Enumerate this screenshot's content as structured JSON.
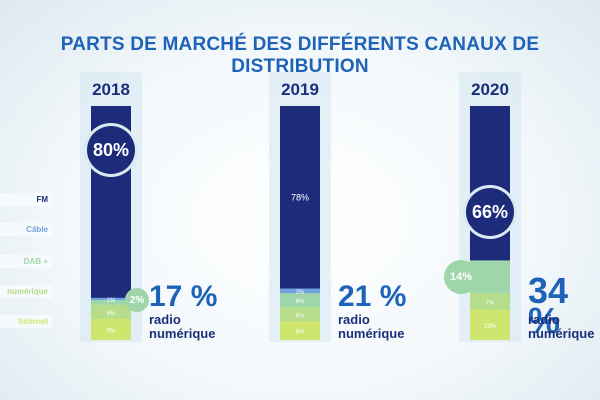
{
  "title": "PARTS DE MARCHÉ DES DIFFÉRENTS CANAUX DE DISTRIBUTION",
  "chart_data": {
    "type": "bar",
    "stacked": true,
    "title": "PARTS DE MARCHÉ DES DIFFÉRENTS CANAUX DE DISTRIBUTION",
    "categories": [
      "2018",
      "2019",
      "2020"
    ],
    "unit": "%",
    "series": [
      {
        "name": "FM",
        "color": "#1c2c7a",
        "labels": [
          "80%",
          "78%",
          "66%"
        ],
        "values": [
          80,
          78,
          66
        ]
      },
      {
        "name": "Câble",
        "color": "#6fa3dd",
        "labels": [
          "1%",
          "2%",
          ""
        ],
        "values": [
          1,
          2,
          0
        ]
      },
      {
        "name": "DAB +",
        "color": "#9fd6a9",
        "labels": [
          "2%",
          "6%",
          "14%"
        ],
        "values": [
          2,
          6,
          14
        ]
      },
      {
        "name": "numérique",
        "color": "#b6dd8a",
        "labels": [
          "6%",
          "6%",
          "7%"
        ],
        "values": [
          6,
          6,
          7
        ]
      },
      {
        "name": "Internet",
        "color": "#cfe66e",
        "labels": [
          "9%",
          "8%",
          "13%"
        ],
        "values": [
          9,
          8,
          13
        ]
      }
    ],
    "totals": [
      {
        "value": "17 %",
        "line1": "radio",
        "line2": "numérique"
      },
      {
        "value": "21 %",
        "line1": "radio",
        "line2": "numérique"
      },
      {
        "value": "34 %",
        "line1": "radio",
        "line2": "numérique"
      }
    ],
    "colors": {
      "title": "#1e63b8",
      "year": "#1a2f7a",
      "total": "#1e63b8",
      "track": "#dbe9f3",
      "fm_label": "#ffffff",
      "small_label": "#ffffff"
    }
  }
}
